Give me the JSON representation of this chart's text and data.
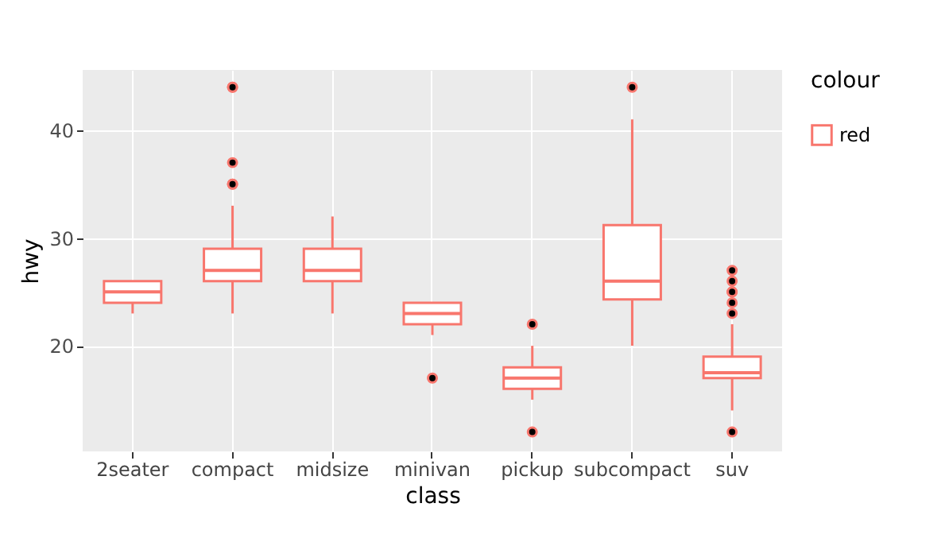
{
  "chart_data": {
    "type": "box",
    "xlabel": "class",
    "ylabel": "hwy",
    "legend_title": "colour",
    "categories": [
      "2seater",
      "compact",
      "midsize",
      "minivan",
      "pickup",
      "subcompact",
      "suv"
    ],
    "ylim": [
      10.2,
      45.6
    ],
    "yticks": [
      20,
      30,
      40
    ],
    "grid": true,
    "legend": "right",
    "series": [
      {
        "name": "red",
        "color": "#f8766d",
        "boxes": [
          {
            "low": 23,
            "q1": 24,
            "median": 25,
            "q3": 26,
            "high": 26
          },
          {
            "low": 23,
            "q1": 26,
            "median": 27,
            "q3": 29,
            "high": 33,
            "outliers": [
              35,
              37,
              35,
              44,
              44
            ]
          },
          {
            "low": 23,
            "q1": 26,
            "median": 27,
            "q3": 29,
            "high": 32
          },
          {
            "low": 21,
            "q1": 22,
            "median": 23,
            "q3": 24,
            "high": 24,
            "outliers": [
              17
            ]
          },
          {
            "low": 15,
            "q1": 16,
            "median": 17,
            "q3": 18,
            "high": 20,
            "outliers": [
              22,
              12
            ]
          },
          {
            "low": 20,
            "q1": 24.3,
            "median": 26,
            "q3": 31.2,
            "high": 41,
            "outliers": [
              44
            ]
          },
          {
            "low": 14,
            "q1": 17,
            "median": 17.5,
            "q3": 19,
            "high": 22,
            "outliers": [
              12,
              23,
              24,
              25,
              25,
              26,
              27
            ]
          }
        ]
      }
    ]
  }
}
